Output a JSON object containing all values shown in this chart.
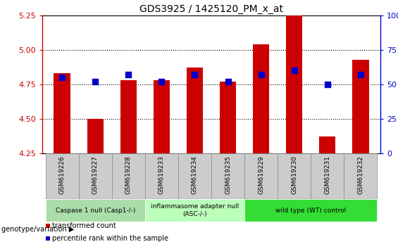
{
  "title": "GDS3925 / 1425120_PM_x_at",
  "samples": [
    "GSM619226",
    "GSM619227",
    "GSM619228",
    "GSM619233",
    "GSM619234",
    "GSM619235",
    "GSM619229",
    "GSM619230",
    "GSM619231",
    "GSM619232"
  ],
  "transformed_count": [
    4.83,
    4.5,
    4.78,
    4.78,
    4.87,
    4.77,
    5.04,
    5.25,
    4.37,
    4.93
  ],
  "percentile_rank": [
    55,
    52,
    57,
    52,
    57,
    52,
    57,
    60,
    50,
    57
  ],
  "ylim_left": [
    4.25,
    5.25
  ],
  "ylim_right": [
    0,
    100
  ],
  "yticks_left": [
    4.25,
    4.5,
    4.75,
    5.0,
    5.25
  ],
  "yticks_right": [
    0,
    25,
    50,
    75,
    100
  ],
  "ytick_labels_right": [
    "0",
    "25",
    "50",
    "75",
    "100%"
  ],
  "bar_color": "#cc0000",
  "dot_color": "#0000cc",
  "groups": [
    {
      "label": "Caspase 1 null (Casp1-/-)",
      "indices": [
        0,
        1,
        2
      ],
      "color": "#aaddaa"
    },
    {
      "label": "inflammasome adapter null\n(ASC-/-)",
      "indices": [
        3,
        4,
        5
      ],
      "color": "#bbffbb"
    },
    {
      "label": "wild type (WT) control",
      "indices": [
        6,
        7,
        8,
        9
      ],
      "color": "#33dd33"
    }
  ],
  "legend_items": [
    {
      "label": "transformed count",
      "color": "#cc0000"
    },
    {
      "label": "percentile rank within the sample",
      "color": "#0000cc"
    }
  ],
  "bar_width": 0.5,
  "dot_size": 40,
  "baseline": 4.25,
  "sample_box_color": "#cccccc",
  "sample_box_edge": "#888888"
}
